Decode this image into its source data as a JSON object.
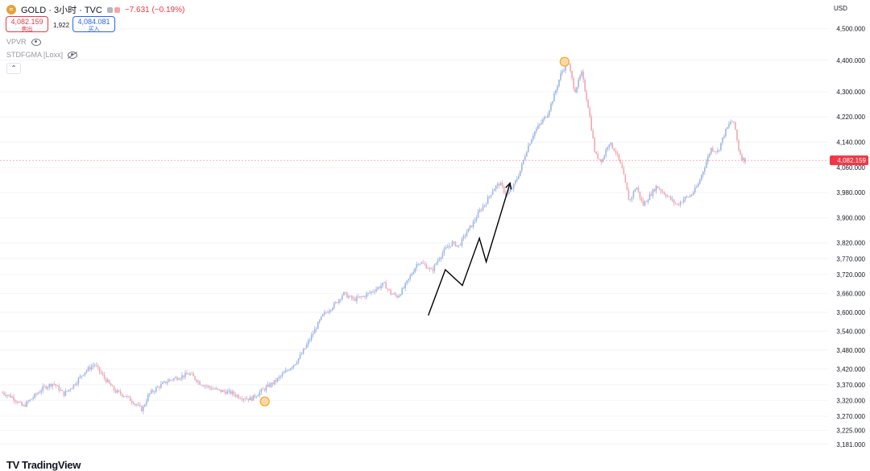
{
  "header": {
    "symbol_title": "GOLD · 3小时 · TVC",
    "change": "−7.631 (−0.19%)",
    "sell_price": "4,082.159",
    "sell_label": "卖出",
    "spread": "1,922",
    "buy_price": "4,084.081",
    "buy_label": "买入"
  },
  "indicators": [
    {
      "label": "VPVR",
      "visible": true
    },
    {
      "label": "STDFGMA [Loxx]",
      "visible": false
    }
  ],
  "currency": "USD",
  "brand": "TradingView",
  "colors": {
    "up": "#9db6e8",
    "down": "#f0a8b4",
    "last_price": "#f23645",
    "marker": "#f5a623",
    "arrow": "#000000"
  },
  "chart_data": {
    "type": "candlestick",
    "ylim": [
      3160,
      4540
    ],
    "y_ticks": [
      "4,500.000",
      "4,400.000",
      "4,300.000",
      "4,220.000",
      "4,140.000",
      "4,060.000",
      "3,980.000",
      "3,900.000",
      "3,820.000",
      "3,770.000",
      "3,720.000",
      "3,660.000",
      "3,600.000",
      "3,540.000",
      "3,480.000",
      "3,420.000",
      "3,370.000",
      "3,320.000",
      "3,270.000",
      "3,225.000",
      "3,181.000"
    ],
    "last_price": 4082.159,
    "last_price_label": "4,082.159",
    "close_path": [
      [
        0,
        3345
      ],
      [
        3,
        3330
      ],
      [
        6,
        3300
      ],
      [
        9,
        3330
      ],
      [
        12,
        3360
      ],
      [
        15,
        3375
      ],
      [
        18,
        3340
      ],
      [
        21,
        3370
      ],
      [
        24,
        3410
      ],
      [
        27,
        3435
      ],
      [
        30,
        3390
      ],
      [
        33,
        3350
      ],
      [
        36,
        3335
      ],
      [
        39,
        3310
      ],
      [
        41,
        3290
      ],
      [
        43,
        3340
      ],
      [
        46,
        3365
      ],
      [
        49,
        3385
      ],
      [
        52,
        3395
      ],
      [
        55,
        3405
      ],
      [
        58,
        3375
      ],
      [
        61,
        3360
      ],
      [
        64,
        3350
      ],
      [
        67,
        3345
      ],
      [
        70,
        3330
      ],
      [
        73,
        3325
      ],
      [
        76,
        3350
      ],
      [
        78,
        3365
      ],
      [
        80,
        3380
      ],
      [
        82,
        3400
      ],
      [
        84,
        3420
      ],
      [
        86,
        3440
      ],
      [
        88,
        3470
      ],
      [
        90,
        3510
      ],
      [
        92,
        3550
      ],
      [
        94,
        3590
      ],
      [
        96,
        3610
      ],
      [
        98,
        3630
      ],
      [
        100,
        3660
      ],
      [
        103,
        3640
      ],
      [
        106,
        3650
      ],
      [
        109,
        3670
      ],
      [
        112,
        3690
      ],
      [
        114,
        3660
      ],
      [
        116,
        3650
      ],
      [
        118,
        3680
      ],
      [
        120,
        3720
      ],
      [
        122,
        3760
      ],
      [
        124,
        3750
      ],
      [
        126,
        3730
      ],
      [
        128,
        3770
      ],
      [
        130,
        3800
      ],
      [
        132,
        3820
      ],
      [
        134,
        3810
      ],
      [
        136,
        3850
      ],
      [
        138,
        3880
      ],
      [
        140,
        3920
      ],
      [
        142,
        3950
      ],
      [
        144,
        3990
      ],
      [
        146,
        4010
      ],
      [
        148,
        3970
      ],
      [
        150,
        4000
      ],
      [
        152,
        4050
      ],
      [
        154,
        4120
      ],
      [
        156,
        4170
      ],
      [
        158,
        4200
      ],
      [
        160,
        4230
      ],
      [
        162,
        4290
      ],
      [
        164,
        4360
      ],
      [
        166,
        4395
      ],
      [
        168,
        4300
      ],
      [
        170,
        4360
      ],
      [
        172,
        4250
      ],
      [
        174,
        4100
      ],
      [
        176,
        4080
      ],
      [
        178,
        4140
      ],
      [
        180,
        4110
      ],
      [
        182,
        4050
      ],
      [
        184,
        3950
      ],
      [
        186,
        4000
      ],
      [
        188,
        3940
      ],
      [
        190,
        3970
      ],
      [
        192,
        4000
      ],
      [
        194,
        3980
      ],
      [
        196,
        3960
      ],
      [
        198,
        3940
      ],
      [
        200,
        3960
      ],
      [
        202,
        3970
      ],
      [
        204,
        4000
      ],
      [
        206,
        4060
      ],
      [
        208,
        4120
      ],
      [
        210,
        4110
      ],
      [
        212,
        4170
      ],
      [
        214,
        4210
      ],
      [
        215,
        4190
      ],
      [
        216,
        4120
      ],
      [
        217,
        4090
      ],
      [
        218,
        4082.159
      ]
    ],
    "markers": [
      {
        "x": 77,
        "y": 3317
      },
      {
        "x": 165,
        "y": 4395
      }
    ],
    "arrow_path": [
      [
        125,
        3590
      ],
      [
        130,
        3735
      ],
      [
        135,
        3685
      ],
      [
        140,
        3835
      ],
      [
        142,
        3760
      ],
      [
        149,
        4010
      ]
    ]
  }
}
